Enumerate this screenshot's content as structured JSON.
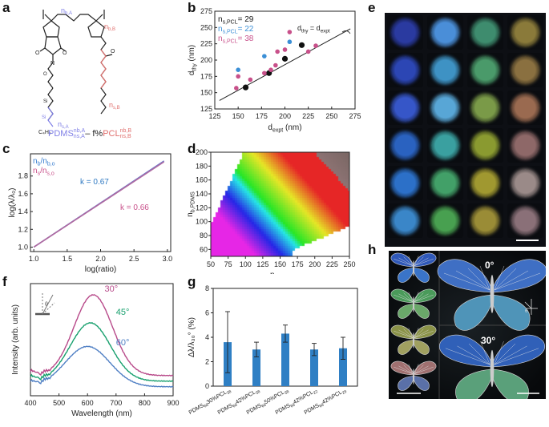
{
  "panels": {
    "a": "a",
    "b": "b",
    "c": "c",
    "d": "d",
    "e": "e",
    "f": "f",
    "g": "g",
    "h": "h"
  },
  "panel_a": {
    "labels": {
      "nb_a": "n",
      "nb_a_sub": "b,A",
      "nb_b": "n",
      "nb_b_sub": "b,B",
      "ns_a": "n",
      "ns_a_sub": "s,A",
      "ns_b": "n",
      "ns_b_sub": "s,B",
      "c4h9": "C₄H₉",
      "formula_pdms": "PDMS",
      "formula_mid": "– f%",
      "formula_pcl": "PCL",
      "sub_pdms_top": "n",
      "sub_pdms_top_s": "b,A",
      "sub_pdms_bot": "n",
      "sub_pdms_bot_s": "s,A",
      "sub_pcl_top": "n",
      "sub_pcl_top_s": "b,B",
      "sub_pcl_bot": "n",
      "sub_pcl_bot_s": "s,B"
    },
    "colors": {
      "pdms": "#7f7fe6",
      "pcl": "#e0706e"
    }
  },
  "chart_data": [
    {
      "id": "b",
      "type": "scatter",
      "xlabel": "d",
      "xlabel_sub": "expt",
      "xlabel_unit": " (nm)",
      "ylabel": "d",
      "ylabel_sub": "thy",
      "ylabel_unit": " (nm)",
      "xlim": [
        125,
        275
      ],
      "ylim": [
        125,
        275
      ],
      "xticks": [
        125,
        150,
        175,
        200,
        225,
        250,
        275
      ],
      "yticks": [
        125,
        150,
        175,
        200,
        225,
        250,
        275
      ],
      "line_label": "d",
      "line_label_sub1": "thy",
      "line_label_mid": " = d",
      "line_label_sub2": "expt",
      "legend": [
        {
          "prefix": "n",
          "sub": "s,PCL",
          "suffix": "= 29",
          "color": "#111111"
        },
        {
          "prefix": "n",
          "sub": "s,PCL",
          "suffix": "= 22",
          "color": "#3b8fd6"
        },
        {
          "prefix": "n",
          "sub": "s,PCL",
          "suffix": "= 38",
          "color": "#c8508a"
        }
      ],
      "series": [
        {
          "name": "29",
          "color": "#111111",
          "points": [
            [
              158,
              158
            ],
            [
              183,
              180
            ],
            [
              200,
              202
            ],
            [
              218,
              223
            ]
          ]
        },
        {
          "name": "22",
          "color": "#3b8fd6",
          "points": [
            [
              150,
              185
            ],
            [
              178,
              206
            ],
            [
              205,
              228
            ]
          ]
        },
        {
          "name": "38",
          "color": "#c8508a",
          "points": [
            [
              148,
              157
            ],
            [
              150,
              175
            ],
            [
              163,
              170
            ],
            [
              178,
              180
            ],
            [
              185,
              185
            ],
            [
              190,
              192
            ],
            [
              192,
              213
            ],
            [
              200,
              216
            ],
            [
              205,
              243
            ],
            [
              225,
              213
            ],
            [
              233,
              222
            ]
          ]
        }
      ]
    },
    {
      "id": "c",
      "type": "line",
      "xlabel": "log(ratio)",
      "ylabel": "log(λ/λ₀)",
      "xlim": [
        0.95,
        3.05
      ],
      "ylim": [
        0.95,
        2.05
      ],
      "xticks": [
        1.0,
        1.5,
        2.0,
        2.5,
        3.0
      ],
      "xtick_labels": [
        "1.0",
        "1.5",
        "2.0",
        "2.5",
        "3.0"
      ],
      "yticks": [
        1.0,
        1.2,
        1.4,
        1.6,
        1.8
      ],
      "ytick_labels": [
        "1.0",
        "1.2",
        "1.4",
        "1.6",
        "1.8"
      ],
      "legend": [
        {
          "prefix": "n",
          "sub": "b",
          "mid": "/n",
          "sub2": "b,o",
          "color": "#3b7fd0"
        },
        {
          "prefix": "n",
          "sub": "s",
          "mid": "/n",
          "sub2": "s,o",
          "color": "#c8508a"
        }
      ],
      "annotations": [
        {
          "text": "k = 0.67",
          "color": "#2f79c2"
        },
        {
          "text": "k = 0.66",
          "color": "#c8508a"
        }
      ],
      "series": [
        {
          "name": "nb",
          "color": "#6e78c8",
          "x": [
            1.0,
            2.95
          ],
          "y": [
            1.0,
            1.97
          ]
        },
        {
          "name": "ns",
          "color": "#b06aa0",
          "x": [
            1.0,
            2.95
          ],
          "y": [
            1.0,
            1.96
          ]
        }
      ]
    },
    {
      "id": "d",
      "type": "heatmap",
      "xlabel": "n",
      "xlabel_sub": "b,PCL",
      "ylabel": "n",
      "ylabel_sub": "b,PDMS",
      "xlim": [
        50,
        250
      ],
      "ylim": [
        50,
        200
      ],
      "xticks": [
        50,
        75,
        100,
        125,
        150,
        175,
        200,
        225,
        250
      ],
      "yticks": [
        60,
        80,
        100,
        120,
        140,
        160,
        180,
        200
      ]
    },
    {
      "id": "f",
      "type": "line",
      "xlabel": "Wavelength (nm)",
      "ylabel": "Intensity (arb. units)",
      "xlim": [
        400,
        900
      ],
      "xticks": [
        400,
        500,
        600,
        700,
        800,
        900
      ],
      "series": [
        {
          "name": "30°",
          "color": "#b84a8a",
          "peak": 620,
          "base": 0.1,
          "amp": 0.72,
          "width": 95
        },
        {
          "name": "45°",
          "color": "#18a06e",
          "peak": 610,
          "base": 0.05,
          "amp": 0.52,
          "width": 100
        },
        {
          "name": "60°",
          "color": "#4f7fc4",
          "peak": 600,
          "base": 0.0,
          "amp": 0.36,
          "width": 110
        }
      ],
      "labels": [
        "30°",
        "45°",
        "60°"
      ],
      "inset_angle": "θ"
    },
    {
      "id": "g",
      "type": "bar",
      "ylabel": "Δλ/λ₃₀° (%)",
      "ylim": [
        0,
        8
      ],
      "yticks": [
        0,
        2,
        4,
        6,
        8
      ],
      "color": "#2f7fc4",
      "categories": [
        {
          "a": "PDMS",
          "as": "68",
          "b": "30%PCL",
          "bs": "38"
        },
        {
          "a": "PDMS",
          "as": "68",
          "b": "42%PCL",
          "bs": "38"
        },
        {
          "a": "PDMS",
          "as": "68",
          "b": "50%PCL",
          "bs": "38"
        },
        {
          "a": "PDMS",
          "as": "68",
          "b": "42%PCL",
          "bs": "22"
        },
        {
          "a": "PDMS",
          "as": "68",
          "b": "42%PCL",
          "bs": "29"
        }
      ],
      "values": [
        3.6,
        3.0,
        4.3,
        3.0,
        3.1
      ],
      "errors": [
        2.5,
        0.6,
        0.7,
        0.5,
        0.9
      ]
    }
  ],
  "panel_e": {
    "grid_colors": [
      [
        "#2a3aa0",
        "#4a8ed8",
        "#3e8c6e",
        "#8a7a3a"
      ],
      [
        "#2c46b4",
        "#3e92c4",
        "#4a9a6a",
        "#8a7040"
      ],
      [
        "#3656c8",
        "#58a6d6",
        "#7a9a48",
        "#9a6a50"
      ],
      [
        "#2a62c0",
        "#3aa0a0",
        "#8a9a30",
        "#8e6868"
      ],
      [
        "#2c70c8",
        "#42a068",
        "#a09830",
        "#9a8a88"
      ],
      [
        "#3a86c8",
        "#48a050",
        "#9a8c36",
        "#8a7078"
      ]
    ]
  },
  "panel_h": {
    "angle_big_1": "0°",
    "angle_big_2": "30°",
    "inset_theta": "θ"
  }
}
